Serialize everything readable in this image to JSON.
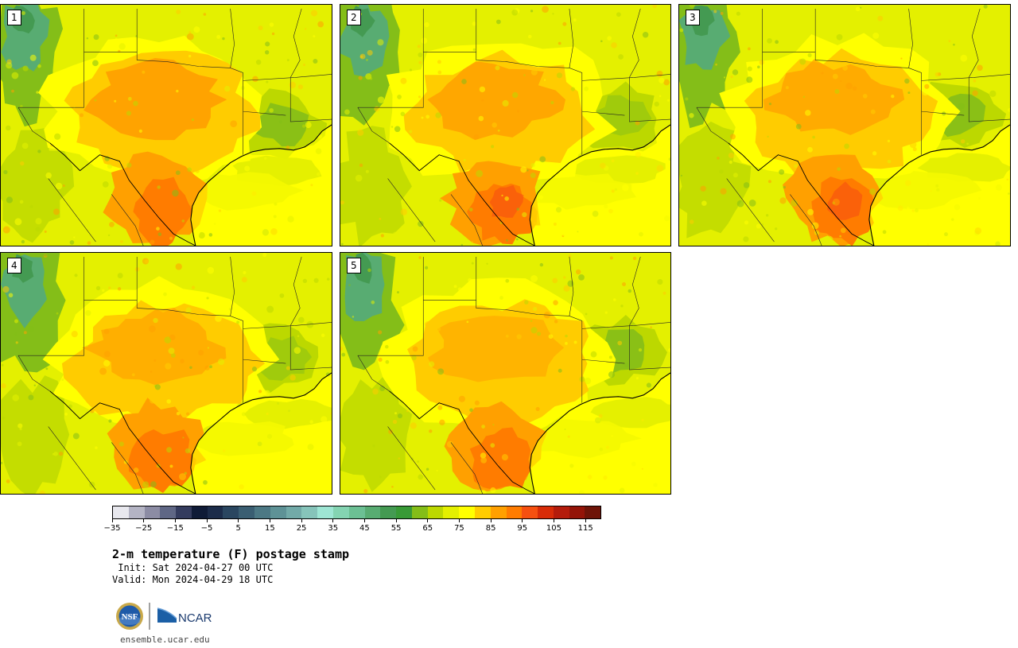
{
  "stamps": [
    {
      "label": "1",
      "variant": 0
    },
    {
      "label": "2",
      "variant": 1
    },
    {
      "label": "3",
      "variant": 2
    },
    {
      "label": "4",
      "variant": 3
    },
    {
      "label": "5",
      "variant": 4
    }
  ],
  "colorbar": {
    "colors": [
      "#e8e8ee",
      "#b4b4c4",
      "#8c8ca4",
      "#5f6785",
      "#343c5e",
      "#0f1b37",
      "#1c2c4a",
      "#2a4660",
      "#3a5e72",
      "#4c7884",
      "#5e9296",
      "#72aaa8",
      "#86c4ba",
      "#9ee6d4",
      "#84d4b2",
      "#6cc094",
      "#58ac72",
      "#449a52",
      "#389a36",
      "#84be18",
      "#bcd800",
      "#e4f000",
      "#ffff00",
      "#ffcc00",
      "#ffa000",
      "#ff7c00",
      "#f65010",
      "#d82c08",
      "#b41c0c",
      "#941408",
      "#6e1408"
    ],
    "tick_labels": [
      "−35",
      "−25",
      "−15",
      "−5",
      "5",
      "15",
      "25",
      "35",
      "45",
      "55",
      "65",
      "75",
      "85",
      "95",
      "105",
      "115"
    ]
  },
  "title": "2-m temperature (F) postage stamp",
  "init_line": " Init: Sat 2024-04-27 00 UTC",
  "valid_line": "Valid: Mon 2024-04-29 18 UTC",
  "logos": {
    "nsf": "NSF",
    "ncar": "NCAR"
  },
  "site": "ensemble.ucar.edu"
}
